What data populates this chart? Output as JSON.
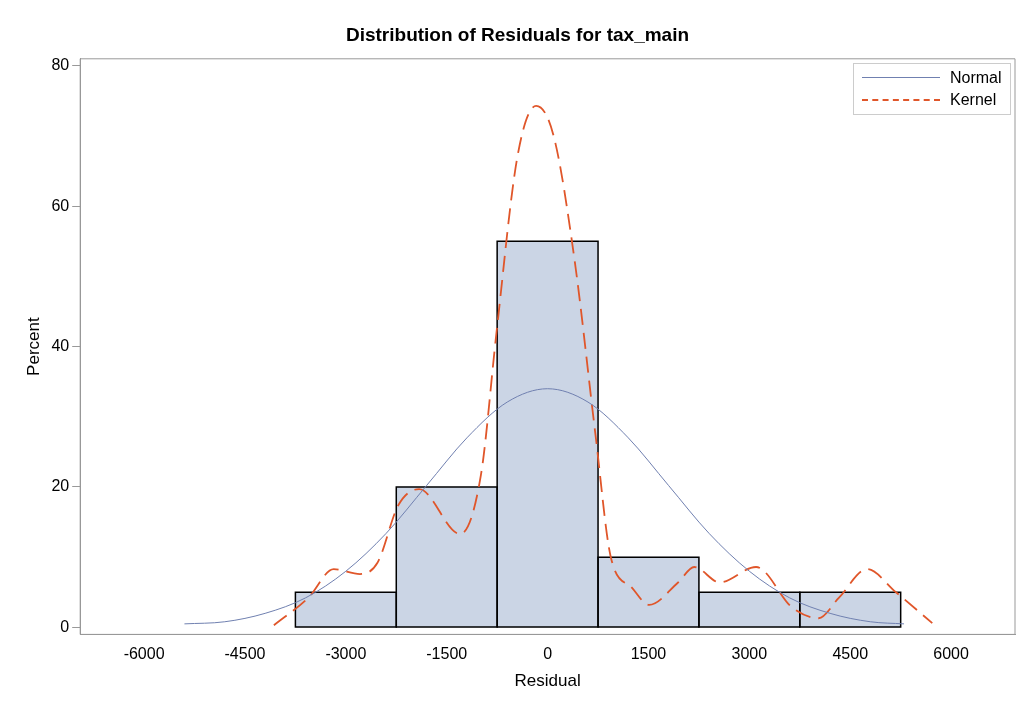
{
  "chart_data": {
    "type": "histogram",
    "title": "Distribution of Residuals for tax_main",
    "xlabel": "Residual",
    "ylabel": "Percent",
    "bins": [
      -3750,
      -2250,
      -750,
      750,
      2250,
      3750,
      5250
    ],
    "values": [
      5,
      20,
      55,
      10,
      5,
      5
    ],
    "color": "#cbd5e5",
    "series": [
      {
        "name": "Normal",
        "type": "line",
        "color": "#7080b0",
        "line_style": "solid",
        "x": [
          -5400,
          -4800,
          -4200,
          -3600,
          -3000,
          -2400,
          -1800,
          -1200,
          -600,
          0,
          600,
          1200,
          1800,
          2400,
          3000,
          3600,
          4200,
          4800,
          5300
        ],
        "values": [
          0.5,
          0.8,
          2,
          4.2,
          8,
          13.4,
          20.2,
          27,
          32.1,
          34,
          32.1,
          27,
          20.2,
          13.4,
          8,
          4.2,
          2,
          0.8,
          0.5
        ]
      },
      {
        "name": "Kernel",
        "type": "line",
        "color": "#e0562a",
        "line_style": "dashed",
        "x": [
          -4070,
          -3560,
          -3180,
          -2790,
          -2530,
          -2220,
          -1910,
          -1300,
          -990,
          -760,
          -450,
          -170,
          90,
          400,
          710,
          940,
          1250,
          1510,
          1940,
          2180,
          2560,
          3100,
          3640,
          4030,
          4330,
          4750,
          5180,
          5720
        ],
        "values": [
          0.3,
          4.2,
          8.3,
          7.6,
          9.2,
          17.4,
          19.7,
          13.3,
          21.8,
          42,
          67,
          74.3,
          70,
          52.4,
          27.6,
          10,
          5.7,
          3.2,
          6.4,
          8.6,
          6.4,
          8.6,
          2.8,
          1.3,
          4.2,
          8.3,
          5,
          0.6
        ]
      }
    ],
    "xlim": [
      -6950,
      6950
    ],
    "xticks": [
      -6000,
      -4500,
      -3000,
      -1500,
      0,
      1500,
      3000,
      4500,
      6000
    ],
    "ylim": [
      -1,
      81
    ],
    "yticks": [
      0,
      20,
      40,
      60,
      80
    ],
    "grid": false,
    "legend": "top right",
    "marker": "none"
  }
}
